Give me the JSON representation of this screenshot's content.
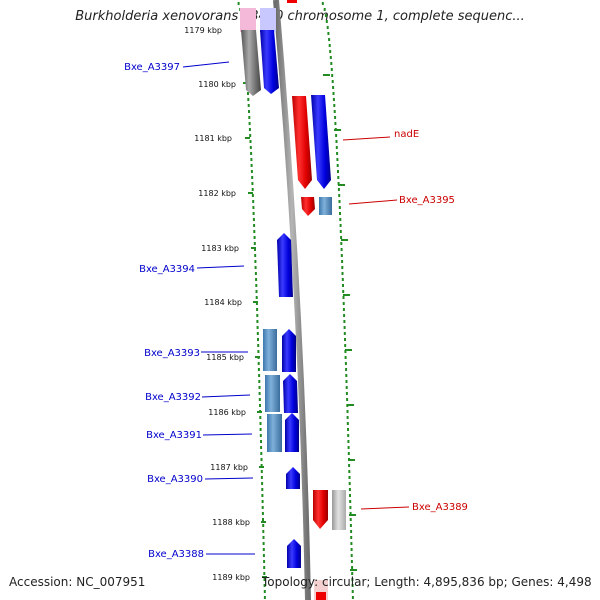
{
  "title": "Burkholderia xenovorans LB400 chromosome 1, complete sequenc...",
  "footer": {
    "accession": "Accession: NC_007951",
    "stats": "Topology: circular; Length: 4,895,836 bp; Genes: 4,498"
  },
  "ruler": [
    {
      "label": "1179 kbp",
      "kbp": 1179
    },
    {
      "label": "1180 kbp",
      "kbp": 1180
    },
    {
      "label": "1181 kbp",
      "kbp": 1181
    },
    {
      "label": "1182 kbp",
      "kbp": 1182
    },
    {
      "label": "1183 kbp",
      "kbp": 1183
    },
    {
      "label": "1184 kbp",
      "kbp": 1184
    },
    {
      "label": "1185 kbp",
      "kbp": 1185
    },
    {
      "label": "1186 kbp",
      "kbp": 1186
    },
    {
      "label": "1187 kbp",
      "kbp": 1187
    },
    {
      "label": "1188 kbp",
      "kbp": 1188
    },
    {
      "label": "1189 kbp",
      "kbp": 1189
    }
  ],
  "gene_labels": [
    {
      "name": "Bxe_A3397",
      "color": "#0000cc"
    },
    {
      "name": "nadE",
      "color": "#cc0000"
    },
    {
      "name": "Bxe_A3395",
      "color": "#cc0000"
    },
    {
      "name": "Bxe_A3394",
      "color": "#0000cc"
    },
    {
      "name": "Bxe_A3393",
      "color": "#0000cc"
    },
    {
      "name": "Bxe_A3392",
      "color": "#0000cc"
    },
    {
      "name": "Bxe_A3391",
      "color": "#0000cc"
    },
    {
      "name": "Bxe_A3390",
      "color": "#0000cc"
    },
    {
      "name": "Bxe_A3389",
      "color": "#cc0000"
    },
    {
      "name": "Bxe_A3388",
      "color": "#0000cc"
    }
  ],
  "colors": {
    "forward_gene": "#0000ee",
    "reverse_gene": "#ee0000",
    "other_gene": "#4f88c0",
    "gray_gene": "#777777",
    "backbone": "#8a8a8a",
    "ruler_ticks": "#228b22"
  }
}
